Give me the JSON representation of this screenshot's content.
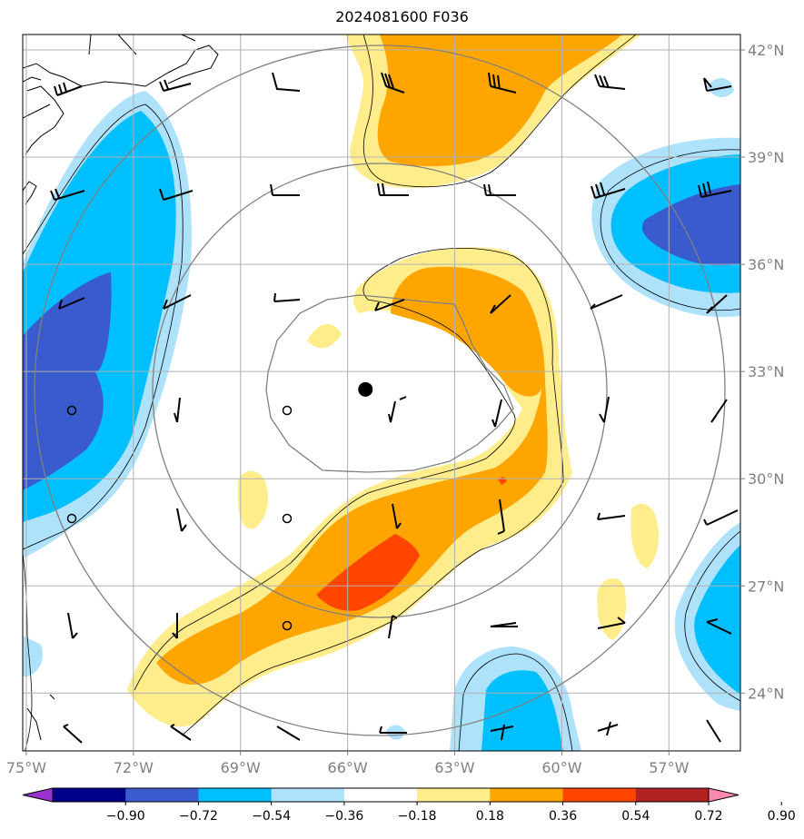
{
  "title": "2024081600 F036",
  "map": {
    "lon_ticks": [
      {
        "lon": -75,
        "label": "75°W"
      },
      {
        "lon": -72,
        "label": "72°W"
      },
      {
        "lon": -69,
        "label": "69°W"
      },
      {
        "lon": -66,
        "label": "66°W"
      },
      {
        "lon": -63,
        "label": "63°W"
      },
      {
        "lon": -60,
        "label": "60°W"
      },
      {
        "lon": -57,
        "label": "57°W"
      }
    ],
    "lat_ticks": [
      {
        "lat": 42,
        "label": "42°N"
      },
      {
        "lat": 39,
        "label": "39°N"
      },
      {
        "lat": 36,
        "label": "36°N"
      },
      {
        "lat": 33,
        "label": "33°N"
      },
      {
        "lat": 30,
        "label": "30°N"
      },
      {
        "lat": 27,
        "label": "27°N"
      },
      {
        "lat": 24,
        "label": "24°N"
      }
    ],
    "storm_center": {
      "lon": -65.5,
      "lat": 32.5
    }
  },
  "colorbar": {
    "labels": [
      "−0.90",
      "−0.72",
      "−0.54",
      "−0.36",
      "−0.18",
      "0.18",
      "0.36",
      "0.54",
      "0.72",
      "0.90"
    ],
    "colors": [
      "#9933cc",
      "#00008b",
      "#3a5bcd",
      "#00bfff",
      "#aee1fa",
      "#ffffff",
      "#ffec8b",
      "#ffa500",
      "#ff4500",
      "#b22222",
      "#ff88b0"
    ]
  }
}
